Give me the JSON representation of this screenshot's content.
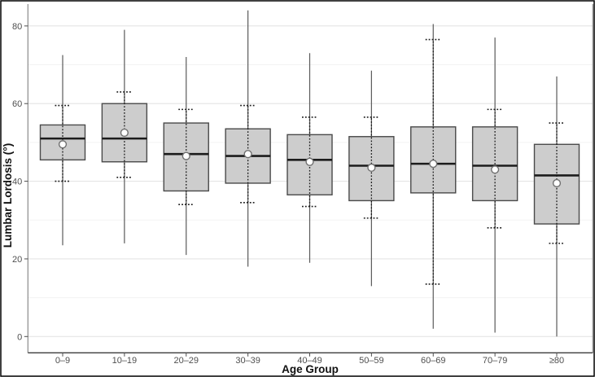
{
  "chart_data": {
    "type": "boxplot",
    "title": "",
    "xlabel": "Age Group",
    "ylabel": "Lumbar Lordosis (°)",
    "ylim": [
      -4,
      86
    ],
    "y_ticks": [
      0,
      20,
      40,
      60,
      80
    ],
    "y_tick_labels": [
      "0",
      "20",
      "40",
      "60",
      "80"
    ],
    "y_minor_ticks": [
      10,
      30,
      50,
      70
    ],
    "grid": "major-and-minor, horizontal only",
    "legend": "none",
    "categories": [
      "0–9",
      "10–19",
      "20–29",
      "30–39",
      "40–49",
      "50–59",
      "60–69",
      "70–79",
      "≥80"
    ],
    "boxes": [
      {
        "group": "0–9",
        "whisker_low": 23.5,
        "dotted_low": 40,
        "q1": 45.5,
        "median": 51,
        "mean": 49.5,
        "q3": 54.5,
        "dotted_high": 59.5,
        "whisker_high": 72.5
      },
      {
        "group": "10–19",
        "whisker_low": 24,
        "dotted_low": 41,
        "q1": 45,
        "median": 51,
        "mean": 52.5,
        "q3": 60,
        "dotted_high": 63,
        "whisker_high": 79
      },
      {
        "group": "20–29",
        "whisker_low": 21,
        "dotted_low": 34,
        "q1": 37.5,
        "median": 47,
        "mean": 46.5,
        "q3": 55,
        "dotted_high": 58.5,
        "whisker_high": 72
      },
      {
        "group": "30–39",
        "whisker_low": 18,
        "dotted_low": 34.5,
        "q1": 39.5,
        "median": 46.5,
        "mean": 47,
        "q3": 53.5,
        "dotted_high": 59.5,
        "whisker_high": 84
      },
      {
        "group": "40–49",
        "whisker_low": 19,
        "dotted_low": 33.5,
        "q1": 36.5,
        "median": 45.5,
        "mean": 45,
        "q3": 52,
        "dotted_high": 56.5,
        "whisker_high": 73
      },
      {
        "group": "50–59",
        "whisker_low": 13,
        "dotted_low": 30.5,
        "q1": 35,
        "median": 44,
        "mean": 43.5,
        "q3": 51.5,
        "dotted_high": 56.5,
        "whisker_high": 68.5
      },
      {
        "group": "60–69",
        "whisker_low": 2,
        "dotted_low": 13.5,
        "q1": 37,
        "median": 44.5,
        "mean": 44.5,
        "q3": 54,
        "dotted_high": 76.5,
        "whisker_high": 80.5
      },
      {
        "group": "70–79",
        "whisker_low": 1,
        "dotted_low": 28,
        "q1": 35,
        "median": 44,
        "mean": 43,
        "q3": 54,
        "dotted_high": 58.5,
        "whisker_high": 77
      },
      {
        "group": "≥80",
        "whisker_low": 0,
        "dotted_low": 24,
        "q1": 29,
        "median": 41.5,
        "mean": 39.5,
        "q3": 49.5,
        "dotted_high": 55,
        "whisker_high": 67
      }
    ],
    "colors": {
      "box_fill": "#cdcdcd",
      "box_border": "#4a4a4a",
      "median_line": "#1c1c1c",
      "whisker_line": "#5a5a5a",
      "dotted_line": "#1a1a1a",
      "mean_fill": "#ffffff",
      "mean_border": "#707070",
      "grid_major": "#e4e4e4",
      "grid_minor": "#f3f3f3",
      "panel_border": "#8a8a8a",
      "axis_line": "#3c3c3c",
      "tick_color": "#4d4d4d",
      "figure_frame": "#000000"
    }
  }
}
